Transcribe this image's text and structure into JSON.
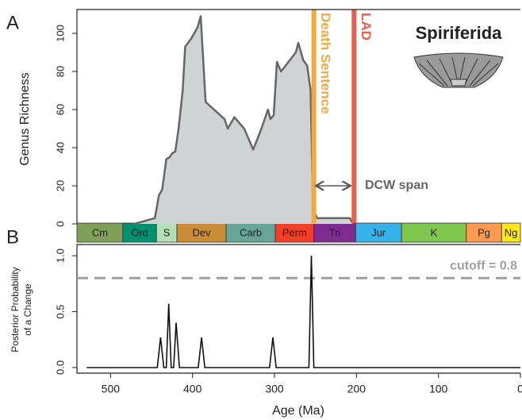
{
  "chart_data": [
    {
      "type": "area",
      "panel": "A",
      "title": "Spiriferida",
      "ylabel": "Genus Richness",
      "x": [
        471,
        446,
        441,
        437,
        432,
        428,
        425,
        421,
        417,
        412,
        409,
        402,
        394,
        390,
        384,
        361,
        357,
        349,
        337,
        326,
        316,
        308,
        305,
        301,
        297,
        292,
        274,
        271,
        265,
        260,
        256,
        253,
        248,
        208,
        204
      ],
      "values": [
        0,
        3,
        15,
        18,
        34,
        35,
        37,
        38,
        50,
        70,
        93,
        97,
        103,
        109,
        64,
        55,
        50,
        56,
        50,
        39,
        50,
        60,
        55,
        57,
        85,
        80,
        90,
        95,
        86,
        83,
        70,
        8,
        3,
        3,
        0
      ],
      "color": "#d0d3d4",
      "line_color": "#666666",
      "xlim": [
        541,
        0
      ],
      "ylim": [
        0,
        112.5
      ],
      "yticks": [
        0,
        20,
        40,
        60,
        80,
        100
      ],
      "markers": [
        {
          "text": "Death Sentence",
          "x": 252,
          "color": "#f5a83c"
        },
        {
          "text": "LAD",
          "x": 203,
          "color": "#e8604c"
        }
      ],
      "span_label": "DCW span",
      "periods": [
        {
          "name": "Cm",
          "start": 541,
          "end": 485,
          "color": "#7fa056"
        },
        {
          "name": "Ord",
          "start": 485,
          "end": 444,
          "color": "#009270"
        },
        {
          "name": "S",
          "start": 444,
          "end": 419,
          "color": "#b3e1b6"
        },
        {
          "name": "Dev",
          "start": 419,
          "end": 359,
          "color": "#cb8c37"
        },
        {
          "name": "Carb",
          "start": 359,
          "end": 299,
          "color": "#67a599"
        },
        {
          "name": "Perm",
          "start": 299,
          "end": 252,
          "color": "#f04028"
        },
        {
          "name": "Tri",
          "start": 252,
          "end": 201,
          "color": "#812b92"
        },
        {
          "name": "Jur",
          "start": 201,
          "end": 145,
          "color": "#34b2e9"
        },
        {
          "name": "K",
          "start": 145,
          "end": 66,
          "color": "#7fc64e"
        },
        {
          "name": "Pg",
          "start": 66,
          "end": 23,
          "color": "#fd9a52"
        },
        {
          "name": "Ng",
          "start": 23,
          "end": 0,
          "color": "#ffe619"
        }
      ]
    },
    {
      "type": "line",
      "panel": "B",
      "ylabel": [
        "Posterior Probability",
        "of a Change"
      ],
      "xlabel": "Age (Ma)",
      "x": [
        529,
        443,
        439,
        435,
        432,
        429,
        426,
        423,
        420,
        416,
        393,
        389,
        385,
        306,
        302,
        298,
        258,
        255,
        252,
        0
      ],
      "values": [
        0,
        0,
        0.27,
        0,
        0,
        0.57,
        0,
        0,
        0.4,
        0,
        0,
        0.27,
        0,
        0,
        0.27,
        0,
        0,
        1.0,
        0,
        0
      ],
      "color": "#111111",
      "xlim": [
        541,
        0
      ],
      "xticks": [
        500,
        400,
        300,
        200,
        100,
        0
      ],
      "ylim": [
        -0.05,
        1.1
      ],
      "yticks": [
        {
          "value": 0,
          "label": "0.0"
        },
        {
          "value": 0.5,
          "label": "0.5"
        },
        {
          "value": 1,
          "label": "1.0"
        }
      ],
      "cutoff": {
        "value": 0.8,
        "label": "cutoff = 0.8",
        "color": "#a0a0a0"
      }
    }
  ]
}
